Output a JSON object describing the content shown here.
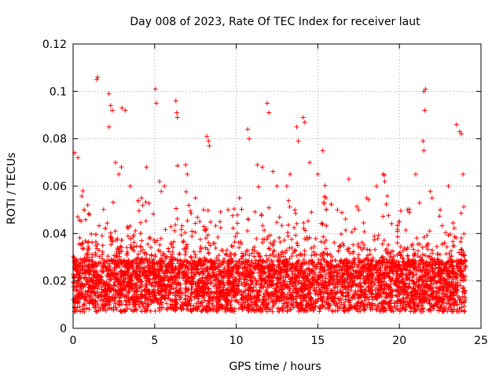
{
  "chart_data": {
    "type": "scatter",
    "title": "Day 008 of 2023, Rate Of TEC Index for receiver laut",
    "xlabel": "GPS time / hours",
    "ylabel": "ROTI / TECUs",
    "xlim": [
      0,
      25
    ],
    "ylim": [
      0,
      0.12
    ],
    "xticks": [
      0,
      5,
      10,
      15,
      20,
      25
    ],
    "yticks": [
      0,
      0.02,
      0.04,
      0.06,
      0.08,
      0.1,
      0.12
    ],
    "xtick_labels": [
      "0",
      "5",
      "10",
      "15",
      "20",
      "25"
    ],
    "ytick_labels": [
      "0",
      "0.02",
      "0.04",
      "0.06",
      "0.08",
      "0.1",
      "0.12"
    ],
    "grid": true,
    "marker": "+",
    "color": "#ff0000",
    "series": [
      {
        "x": [
          1.45,
          1.5,
          2.2,
          2.3,
          2.4,
          2.2,
          3.0,
          3.2,
          5.05,
          5.1,
          6.3,
          6.35,
          6.4,
          8.2,
          8.3,
          8.35,
          11.9,
          12.0,
          10.7,
          10.8,
          13.7,
          13.8,
          14.1,
          14.2,
          15.3,
          16.9,
          19.0,
          19.1,
          21.5,
          21.6,
          21.55,
          21.45,
          21.5,
          23.5,
          23.7,
          23.8,
          0.1,
          0.3,
          0.6,
          0.9,
          1.0,
          2.6,
          2.8,
          3.5,
          4.2,
          4.5,
          5.3,
          5.6,
          6.9,
          7.0,
          7.5,
          8.0,
          9.0,
          9.5,
          10.2,
          11.3,
          11.6,
          12.5,
          13.1,
          13.3,
          14.5,
          15.0,
          15.5,
          16.2,
          17.5,
          18.0,
          18.6,
          20.0,
          20.5,
          21.0,
          22.0,
          22.5,
          23.0,
          23.9
        ],
        "y": [
          0.105,
          0.106,
          0.099,
          0.094,
          0.092,
          0.085,
          0.093,
          0.092,
          0.101,
          0.095,
          0.096,
          0.091,
          0.089,
          0.081,
          0.079,
          0.077,
          0.095,
          0.091,
          0.084,
          0.08,
          0.085,
          0.079,
          0.089,
          0.087,
          0.075,
          0.063,
          0.065,
          0.062,
          0.1,
          0.101,
          0.092,
          0.079,
          0.075,
          0.086,
          0.083,
          0.082,
          0.074,
          0.072,
          0.058,
          0.052,
          0.048,
          0.07,
          0.065,
          0.06,
          0.055,
          0.068,
          0.062,
          0.06,
          0.069,
          0.065,
          0.055,
          0.05,
          0.045,
          0.05,
          0.055,
          0.069,
          0.068,
          0.06,
          0.06,
          0.065,
          0.07,
          0.065,
          0.055,
          0.05,
          0.05,
          0.055,
          0.06,
          0.045,
          0.05,
          0.065,
          0.055,
          0.05,
          0.06,
          0.065
        ]
      }
    ]
  }
}
